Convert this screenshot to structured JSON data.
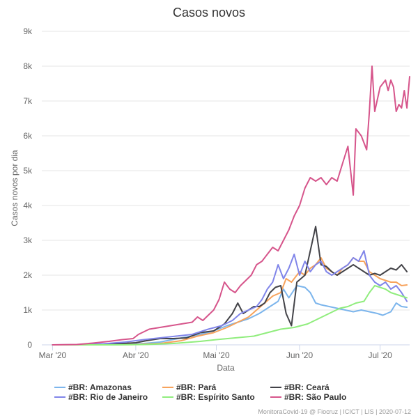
{
  "chart_data": {
    "type": "line",
    "title": "Casos novos",
    "xlabel": "Data",
    "ylabel": "Casos novos por dia",
    "x_range": [
      "2020-02-26",
      "2020-07-12"
    ],
    "ylim": [
      0,
      9000
    ],
    "y_ticks": [
      0,
      1000,
      2000,
      3000,
      4000,
      5000,
      6000,
      7000,
      8000,
      9000
    ],
    "y_tick_labels": [
      "0",
      "1k",
      "2k",
      "3k",
      "4k",
      "5k",
      "6k",
      "7k",
      "8k",
      "9k"
    ],
    "x_ticks": [
      {
        "date": "2020-03-01",
        "label": "Mar '20"
      },
      {
        "date": "2020-04-01",
        "label": "Abr '20"
      },
      {
        "date": "2020-05-01",
        "label": "Mai '20"
      },
      {
        "date": "2020-06-01",
        "label": "Jun '20"
      },
      {
        "date": "2020-07-01",
        "label": "Jul '20"
      }
    ],
    "grid": "horizontal",
    "legend_position": "bottom",
    "series": [
      {
        "name": "#BR: Amazonas",
        "color": "#7cb5ec",
        "points": [
          [
            "2020-03-01",
            0
          ],
          [
            "2020-03-15",
            0
          ],
          [
            "2020-03-25",
            10
          ],
          [
            "2020-04-01",
            20
          ],
          [
            "2020-04-10",
            80
          ],
          [
            "2020-04-18",
            200
          ],
          [
            "2020-04-25",
            300
          ],
          [
            "2020-04-30",
            400
          ],
          [
            "2020-05-05",
            550
          ],
          [
            "2020-05-09",
            650
          ],
          [
            "2020-05-13",
            750
          ],
          [
            "2020-05-17",
            900
          ],
          [
            "2020-05-21",
            1100
          ],
          [
            "2020-05-24",
            1250
          ],
          [
            "2020-05-26",
            1600
          ],
          [
            "2020-05-28",
            1350
          ],
          [
            "2020-05-31",
            1700
          ],
          [
            "2020-06-03",
            1650
          ],
          [
            "2020-06-05",
            1500
          ],
          [
            "2020-06-07",
            1200
          ],
          [
            "2020-06-09",
            1150
          ],
          [
            "2020-06-12",
            1100
          ],
          [
            "2020-06-15",
            1050
          ],
          [
            "2020-06-18",
            1000
          ],
          [
            "2020-06-21",
            950
          ],
          [
            "2020-06-24",
            1000
          ],
          [
            "2020-06-27",
            950
          ],
          [
            "2020-06-30",
            900
          ],
          [
            "2020-07-02",
            850
          ],
          [
            "2020-07-05",
            950
          ],
          [
            "2020-07-07",
            1200
          ],
          [
            "2020-07-09",
            1100
          ],
          [
            "2020-07-11",
            1080
          ]
        ]
      },
      {
        "name": "#BR: Pará",
        "color": "#f7a35c",
        "points": [
          [
            "2020-03-01",
            0
          ],
          [
            "2020-03-20",
            0
          ],
          [
            "2020-04-01",
            10
          ],
          [
            "2020-04-10",
            40
          ],
          [
            "2020-04-18",
            120
          ],
          [
            "2020-04-24",
            250
          ],
          [
            "2020-04-30",
            350
          ],
          [
            "2020-05-05",
            500
          ],
          [
            "2020-05-09",
            650
          ],
          [
            "2020-05-13",
            800
          ],
          [
            "2020-05-16",
            1000
          ],
          [
            "2020-05-19",
            1200
          ],
          [
            "2020-05-22",
            1400
          ],
          [
            "2020-05-25",
            1500
          ],
          [
            "2020-05-27",
            1900
          ],
          [
            "2020-05-29",
            1800
          ],
          [
            "2020-06-01",
            2100
          ],
          [
            "2020-06-03",
            2000
          ],
          [
            "2020-06-05",
            2200
          ],
          [
            "2020-06-07",
            2300
          ],
          [
            "2020-06-09",
            2500
          ],
          [
            "2020-06-11",
            2200
          ],
          [
            "2020-06-13",
            2100
          ],
          [
            "2020-06-15",
            2000
          ],
          [
            "2020-06-17",
            2200
          ],
          [
            "2020-06-19",
            2300
          ],
          [
            "2020-06-21",
            2500
          ],
          [
            "2020-06-23",
            2400
          ],
          [
            "2020-06-25",
            2400
          ],
          [
            "2020-06-27",
            2100
          ],
          [
            "2020-06-29",
            2000
          ],
          [
            "2020-07-01",
            1900
          ],
          [
            "2020-07-03",
            1850
          ],
          [
            "2020-07-05",
            1800
          ],
          [
            "2020-07-07",
            1800
          ],
          [
            "2020-07-09",
            1700
          ],
          [
            "2020-07-11",
            1720
          ]
        ]
      },
      {
        "name": "#BR: Ceará",
        "color": "#434348",
        "points": [
          [
            "2020-03-01",
            0
          ],
          [
            "2020-03-15",
            0
          ],
          [
            "2020-03-22",
            20
          ],
          [
            "2020-04-01",
            60
          ],
          [
            "2020-04-05",
            120
          ],
          [
            "2020-04-10",
            180
          ],
          [
            "2020-04-15",
            180
          ],
          [
            "2020-04-20",
            200
          ],
          [
            "2020-04-25",
            350
          ],
          [
            "2020-04-30",
            400
          ],
          [
            "2020-05-04",
            600
          ],
          [
            "2020-05-07",
            900
          ],
          [
            "2020-05-09",
            1200
          ],
          [
            "2020-05-11",
            900
          ],
          [
            "2020-05-13",
            1000
          ],
          [
            "2020-05-15",
            1100
          ],
          [
            "2020-05-17",
            1100
          ],
          [
            "2020-05-19",
            1200
          ],
          [
            "2020-05-21",
            1500
          ],
          [
            "2020-05-23",
            1650
          ],
          [
            "2020-05-25",
            1700
          ],
          [
            "2020-05-27",
            900
          ],
          [
            "2020-05-29",
            550
          ],
          [
            "2020-05-31",
            1800
          ],
          [
            "2020-06-03",
            2000
          ],
          [
            "2020-06-05",
            2700
          ],
          [
            "2020-06-07",
            3400
          ],
          [
            "2020-06-09",
            2300
          ],
          [
            "2020-06-11",
            2250
          ],
          [
            "2020-06-13",
            2100
          ],
          [
            "2020-06-15",
            2000
          ],
          [
            "2020-06-17",
            2100
          ],
          [
            "2020-06-19",
            2200
          ],
          [
            "2020-06-21",
            2300
          ],
          [
            "2020-06-23",
            2200
          ],
          [
            "2020-06-25",
            2100
          ],
          [
            "2020-06-27",
            2000
          ],
          [
            "2020-06-29",
            2050
          ],
          [
            "2020-07-01",
            2000
          ],
          [
            "2020-07-03",
            2100
          ],
          [
            "2020-07-05",
            2200
          ],
          [
            "2020-07-07",
            2150
          ],
          [
            "2020-07-09",
            2300
          ],
          [
            "2020-07-11",
            2100
          ]
        ]
      },
      {
        "name": "#BR: Rio de Janeiro",
        "color": "#8085e9",
        "points": [
          [
            "2020-03-01",
            0
          ],
          [
            "2020-03-10",
            5
          ],
          [
            "2020-03-20",
            30
          ],
          [
            "2020-03-28",
            80
          ],
          [
            "2020-04-04",
            150
          ],
          [
            "2020-04-10",
            200
          ],
          [
            "2020-04-16",
            250
          ],
          [
            "2020-04-22",
            300
          ],
          [
            "2020-04-28",
            450
          ],
          [
            "2020-05-03",
            550
          ],
          [
            "2020-05-07",
            700
          ],
          [
            "2020-05-10",
            900
          ],
          [
            "2020-05-13",
            1000
          ],
          [
            "2020-05-16",
            1100
          ],
          [
            "2020-05-18",
            1300
          ],
          [
            "2020-05-20",
            1600
          ],
          [
            "2020-05-22",
            1800
          ],
          [
            "2020-05-24",
            2300
          ],
          [
            "2020-05-26",
            1900
          ],
          [
            "2020-05-28",
            2200
          ],
          [
            "2020-05-30",
            2600
          ],
          [
            "2020-06-01",
            2000
          ],
          [
            "2020-06-03",
            2400
          ],
          [
            "2020-06-05",
            2100
          ],
          [
            "2020-06-07",
            2300
          ],
          [
            "2020-06-09",
            2400
          ],
          [
            "2020-06-11",
            2100
          ],
          [
            "2020-06-13",
            2000
          ],
          [
            "2020-06-15",
            2100
          ],
          [
            "2020-06-17",
            2200
          ],
          [
            "2020-06-19",
            2300
          ],
          [
            "2020-06-21",
            2500
          ],
          [
            "2020-06-23",
            2400
          ],
          [
            "2020-06-25",
            2700
          ],
          [
            "2020-06-27",
            2000
          ],
          [
            "2020-06-29",
            1800
          ],
          [
            "2020-07-01",
            1700
          ],
          [
            "2020-07-03",
            1800
          ],
          [
            "2020-07-05",
            1600
          ],
          [
            "2020-07-07",
            1700
          ],
          [
            "2020-07-09",
            1500
          ],
          [
            "2020-07-11",
            1250
          ]
        ]
      },
      {
        "name": "#BR: Espírito Santo",
        "color": "#90ed7d",
        "points": [
          [
            "2020-03-01",
            0
          ],
          [
            "2020-03-25",
            0
          ],
          [
            "2020-04-05",
            10
          ],
          [
            "2020-04-15",
            40
          ],
          [
            "2020-04-25",
            100
          ],
          [
            "2020-05-01",
            150
          ],
          [
            "2020-05-08",
            200
          ],
          [
            "2020-05-15",
            250
          ],
          [
            "2020-05-20",
            350
          ],
          [
            "2020-05-25",
            450
          ],
          [
            "2020-05-30",
            500
          ],
          [
            "2020-06-04",
            600
          ],
          [
            "2020-06-08",
            750
          ],
          [
            "2020-06-12",
            900
          ],
          [
            "2020-06-16",
            1050
          ],
          [
            "2020-06-19",
            1100
          ],
          [
            "2020-06-22",
            1200
          ],
          [
            "2020-06-25",
            1250
          ],
          [
            "2020-06-27",
            1500
          ],
          [
            "2020-06-29",
            1700
          ],
          [
            "2020-07-01",
            1650
          ],
          [
            "2020-07-03",
            1600
          ],
          [
            "2020-07-05",
            1500
          ],
          [
            "2020-07-07",
            1450
          ],
          [
            "2020-07-09",
            1400
          ],
          [
            "2020-07-11",
            1350
          ]
        ]
      },
      {
        "name": "#BR: São Paulo",
        "color": "#d6558b",
        "points": [
          [
            "2020-03-01",
            0
          ],
          [
            "2020-03-10",
            10
          ],
          [
            "2020-03-16",
            50
          ],
          [
            "2020-03-22",
            100
          ],
          [
            "2020-03-27",
            150
          ],
          [
            "2020-03-31",
            180
          ],
          [
            "2020-04-02",
            300
          ],
          [
            "2020-04-06",
            450
          ],
          [
            "2020-04-10",
            500
          ],
          [
            "2020-04-14",
            550
          ],
          [
            "2020-04-18",
            600
          ],
          [
            "2020-04-22",
            650
          ],
          [
            "2020-04-24",
            800
          ],
          [
            "2020-04-26",
            700
          ],
          [
            "2020-04-28",
            850
          ],
          [
            "2020-04-30",
            1000
          ],
          [
            "2020-05-02",
            1300
          ],
          [
            "2020-05-04",
            1800
          ],
          [
            "2020-05-06",
            1600
          ],
          [
            "2020-05-08",
            1500
          ],
          [
            "2020-05-10",
            1700
          ],
          [
            "2020-05-12",
            1850
          ],
          [
            "2020-05-14",
            2000
          ],
          [
            "2020-05-16",
            2300
          ],
          [
            "2020-05-18",
            2400
          ],
          [
            "2020-05-20",
            2600
          ],
          [
            "2020-05-22",
            2800
          ],
          [
            "2020-05-24",
            2700
          ],
          [
            "2020-05-26",
            3000
          ],
          [
            "2020-05-28",
            3300
          ],
          [
            "2020-05-30",
            3700
          ],
          [
            "2020-06-01",
            4000
          ],
          [
            "2020-06-03",
            4500
          ],
          [
            "2020-06-05",
            4800
          ],
          [
            "2020-06-07",
            4700
          ],
          [
            "2020-06-09",
            4800
          ],
          [
            "2020-06-11",
            4600
          ],
          [
            "2020-06-13",
            4800
          ],
          [
            "2020-06-15",
            4700
          ],
          [
            "2020-06-17",
            5200
          ],
          [
            "2020-06-19",
            5700
          ],
          [
            "2020-06-21",
            4300
          ],
          [
            "2020-06-22",
            6200
          ],
          [
            "2020-06-24",
            6000
          ],
          [
            "2020-06-26",
            5600
          ],
          [
            "2020-06-27",
            6700
          ],
          [
            "2020-06-28",
            8000
          ],
          [
            "2020-06-29",
            6700
          ],
          [
            "2020-07-01",
            7400
          ],
          [
            "2020-07-03",
            7600
          ],
          [
            "2020-07-04",
            7300
          ],
          [
            "2020-07-05",
            7600
          ],
          [
            "2020-07-06",
            7400
          ],
          [
            "2020-07-07",
            6700
          ],
          [
            "2020-07-08",
            6900
          ],
          [
            "2020-07-09",
            6800
          ],
          [
            "2020-07-10",
            7300
          ],
          [
            "2020-07-11",
            6800
          ],
          [
            "2020-07-12",
            7700
          ]
        ]
      }
    ]
  },
  "credits": "MonitoraCovid-19 @ Fiocruz | ICICT | LIS | 2020-07-12"
}
